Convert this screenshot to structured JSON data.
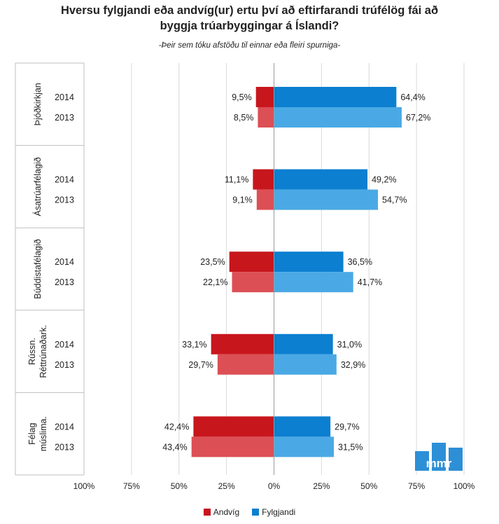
{
  "chart_data": {
    "type": "bar",
    "orientation": "horizontal-diverging",
    "title_line1": "Hversu fylgjandi eða andvíg(ur) ertu því að eftirfarandi trúfélög fái að",
    "title_line2": "byggja trúarbyggingar á Íslandi?",
    "subtitle": "-Þeir sem tóku afstöðu til einnar eða fleiri spurniga-",
    "xlim": [
      -100,
      100
    ],
    "x_ticks": [
      "100%",
      "75%",
      "50%",
      "25%",
      "0%",
      "25%",
      "50%",
      "75%",
      "100%"
    ],
    "legend_position": "bottom",
    "groups": [
      {
        "label_lines": [
          "Þjóðkirkjan"
        ],
        "years": [
          "2014",
          "2013"
        ],
        "andvig": [
          9.5,
          8.5
        ],
        "fylgjandi": [
          64.4,
          67.2
        ],
        "andvig_labels": [
          "9,5%",
          "8,5%"
        ],
        "fylgjandi_labels": [
          "64,4%",
          "67,2%"
        ]
      },
      {
        "label_lines": [
          "Ásatrúarfélagið"
        ],
        "years": [
          "2014",
          "2013"
        ],
        "andvig": [
          11.1,
          9.1
        ],
        "fylgjandi": [
          49.2,
          54.7
        ],
        "andvig_labels": [
          "11,1%",
          "9,1%"
        ],
        "fylgjandi_labels": [
          "49,2%",
          "54,7%"
        ]
      },
      {
        "label_lines": [
          "Búddistafélagið"
        ],
        "years": [
          "2014",
          "2013"
        ],
        "andvig": [
          23.5,
          22.1
        ],
        "fylgjandi": [
          36.5,
          41.7
        ],
        "andvig_labels": [
          "23,5%",
          "22,1%"
        ],
        "fylgjandi_labels": [
          "36,5%",
          "41,7%"
        ]
      },
      {
        "label_lines": [
          "Rússn.",
          "Réttrúnaðark."
        ],
        "years": [
          "2014",
          "2013"
        ],
        "andvig": [
          33.1,
          29.7
        ],
        "fylgjandi": [
          31.0,
          32.9
        ],
        "andvig_labels": [
          "33,1%",
          "29,7%"
        ],
        "fylgjandi_labels": [
          "31,0%",
          "32,9%"
        ]
      },
      {
        "label_lines": [
          "Félag",
          "múslima."
        ],
        "years": [
          "2014",
          "2013"
        ],
        "andvig": [
          42.4,
          43.4
        ],
        "fylgjandi": [
          29.7,
          31.5
        ],
        "andvig_labels": [
          "42,4%",
          "43,4%"
        ],
        "fylgjandi_labels": [
          "29,7%",
          "31,5%"
        ]
      }
    ],
    "series": [
      {
        "name": "Andvíg",
        "colors": [
          "#c8161d",
          "#dc4f55"
        ]
      },
      {
        "name": "Fylgjandi",
        "colors": [
          "#0c7fd0",
          "#4aa9e4"
        ]
      }
    ]
  },
  "logo": {
    "text": "mmr",
    "color": "#2d8fd6"
  }
}
